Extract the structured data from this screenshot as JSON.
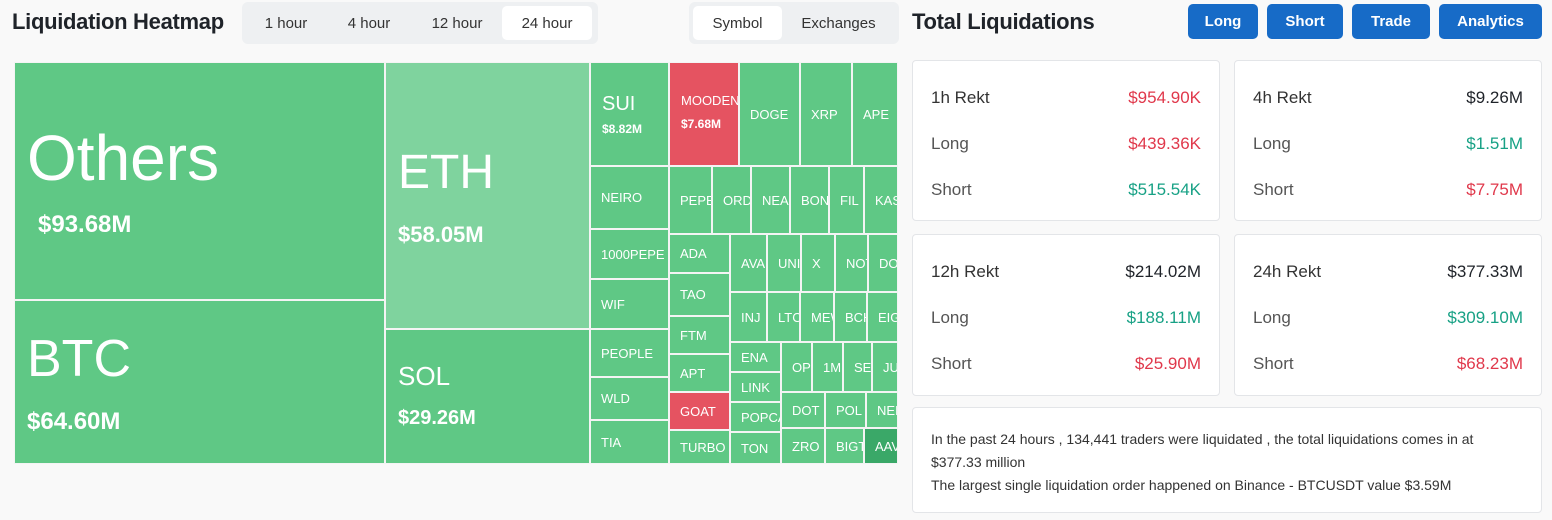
{
  "header": {
    "title": "Liquidation Heatmap",
    "time_tabs": [
      "1 hour",
      "4 hour",
      "12 hour",
      "24 hour"
    ],
    "view_tabs": [
      "Symbol",
      "Exchanges"
    ]
  },
  "heatmap": {
    "tiles": [
      {
        "name": "Others",
        "value": "$93.68M"
      },
      {
        "name": "BTC",
        "value": "$64.60M"
      },
      {
        "name": "ETH",
        "value": "$58.05M"
      },
      {
        "name": "SOL",
        "value": "$29.26M"
      },
      {
        "name": "SUI",
        "value": "$8.82M"
      },
      {
        "name": "NEIRO"
      },
      {
        "name": "1000PEPE"
      },
      {
        "name": "WIF"
      },
      {
        "name": "PEOPLE"
      },
      {
        "name": "WLD"
      },
      {
        "name": "TIA"
      },
      {
        "name": "MOODEN",
        "value": "$7.68M"
      },
      {
        "name": "DOGE"
      },
      {
        "name": "XRP"
      },
      {
        "name": "APE"
      },
      {
        "name": "PEPE"
      },
      {
        "name": "ORD"
      },
      {
        "name": "NEA"
      },
      {
        "name": "BON"
      },
      {
        "name": "FIL"
      },
      {
        "name": "KAS"
      },
      {
        "name": "ADA"
      },
      {
        "name": "TAO"
      },
      {
        "name": "FTM"
      },
      {
        "name": "APT"
      },
      {
        "name": "GOAT"
      },
      {
        "name": "TURBO"
      },
      {
        "name": "AVA"
      },
      {
        "name": "UNI"
      },
      {
        "name": "X"
      },
      {
        "name": "NOT"
      },
      {
        "name": "DOG"
      },
      {
        "name": "INJ"
      },
      {
        "name": "LTC"
      },
      {
        "name": "MEW"
      },
      {
        "name": "BCH"
      },
      {
        "name": "EIG"
      },
      {
        "name": "ENA"
      },
      {
        "name": "LINK"
      },
      {
        "name": "POPCA"
      },
      {
        "name": "TON"
      },
      {
        "name": "OP"
      },
      {
        "name": "1M"
      },
      {
        "name": "SE"
      },
      {
        "name": "JU"
      },
      {
        "name": "DOT"
      },
      {
        "name": "POL"
      },
      {
        "name": "NEI"
      },
      {
        "name": "ZRO"
      },
      {
        "name": "BIGT"
      },
      {
        "name": "AAV"
      }
    ]
  },
  "totals": {
    "title": "Total Liquidations",
    "buttons": [
      "Long",
      "Short",
      "Trade",
      "Analytics"
    ],
    "cards": [
      {
        "title": "1h Rekt",
        "total": "$954.90K",
        "long_label": "Long",
        "long": "$439.36K",
        "short_label": "Short",
        "short": "$515.54K"
      },
      {
        "title": "4h Rekt",
        "total": "$9.26M",
        "long_label": "Long",
        "long": "$1.51M",
        "short_label": "Short",
        "short": "$7.75M"
      },
      {
        "title": "12h Rekt",
        "total": "$214.02M",
        "long_label": "Long",
        "long": "$188.11M",
        "short_label": "Short",
        "short": "$25.90M"
      },
      {
        "title": "24h Rekt",
        "total": "$377.33M",
        "long_label": "Long",
        "long": "$309.10M",
        "short_label": "Short",
        "short": "$68.23M"
      }
    ],
    "summary": [
      "In the past 24 hours , 134,441 traders were liquidated , the total liquidations comes in at $377.33 million",
      "The largest single liquidation order happened on Binance - BTCUSDT value $3.59M"
    ]
  }
}
